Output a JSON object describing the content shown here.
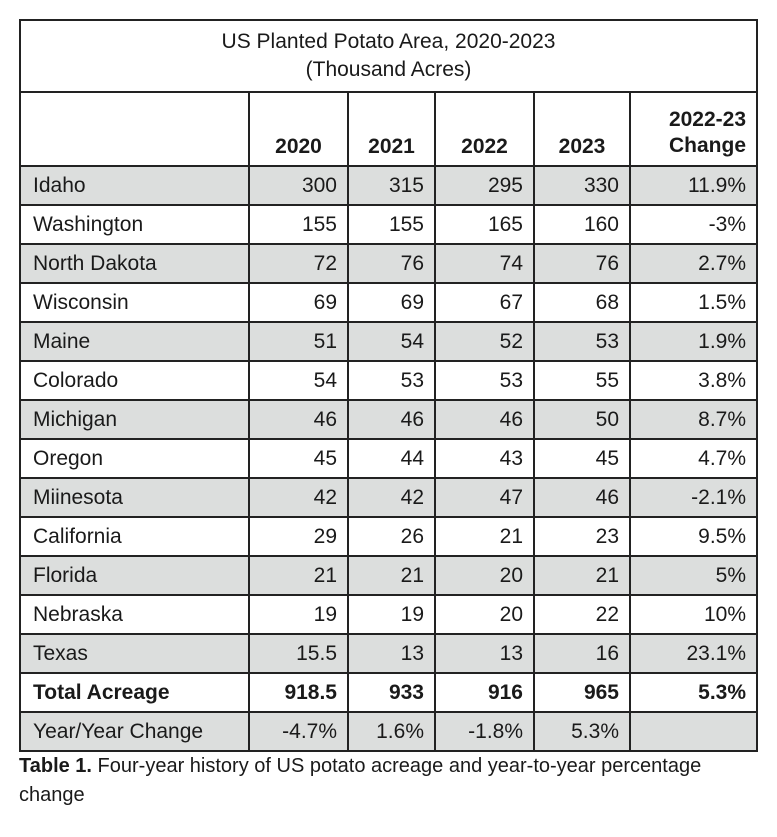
{
  "table": {
    "title_line1": "US Planted Potato Area, 2020-2023",
    "title_line2": "(Thousand Acres)",
    "headers": [
      "",
      "2020",
      "2021",
      "2022",
      "2023",
      "2022-23",
      "Change"
    ],
    "rows": [
      {
        "state": "Idaho",
        "v2020": "300",
        "v2021": "315",
        "v2022": "295",
        "v2023": "330",
        "change": "11.9%"
      },
      {
        "state": "Washington",
        "v2020": "155",
        "v2021": "155",
        "v2022": "165",
        "v2023": "160",
        "change": "-3%"
      },
      {
        "state": "North Dakota",
        "v2020": "72",
        "v2021": "76",
        "v2022": "74",
        "v2023": "76",
        "change": "2.7%"
      },
      {
        "state": "Wisconsin",
        "v2020": "69",
        "v2021": "69",
        "v2022": "67",
        "v2023": "68",
        "change": "1.5%"
      },
      {
        "state": "Maine",
        "v2020": "51",
        "v2021": "54",
        "v2022": "52",
        "v2023": "53",
        "change": "1.9%"
      },
      {
        "state": "Colorado",
        "v2020": "54",
        "v2021": "53",
        "v2022": "53",
        "v2023": "55",
        "change": "3.8%"
      },
      {
        "state": "Michigan",
        "v2020": "46",
        "v2021": "46",
        "v2022": "46",
        "v2023": "50",
        "change": "8.7%"
      },
      {
        "state": "Oregon",
        "v2020": "45",
        "v2021": "44",
        "v2022": "43",
        "v2023": "45",
        "change": "4.7%"
      },
      {
        "state": "Miinesota",
        "v2020": "42",
        "v2021": "42",
        "v2022": "47",
        "v2023": "46",
        "change": "-2.1%"
      },
      {
        "state": "California",
        "v2020": "29",
        "v2021": "26",
        "v2022": "21",
        "v2023": "23",
        "change": "9.5%"
      },
      {
        "state": "Florida",
        "v2020": "21",
        "v2021": "21",
        "v2022": "20",
        "v2023": "21",
        "change": "5%"
      },
      {
        "state": "Nebraska",
        "v2020": "19",
        "v2021": "19",
        "v2022": "20",
        "v2023": "22",
        "change": "10%"
      },
      {
        "state": "Texas",
        "v2020": "15.5",
        "v2021": "13",
        "v2022": "13",
        "v2023": "16",
        "change": "23.1%"
      }
    ],
    "total": {
      "state": "Total Acreage",
      "v2020": "918.5",
      "v2021": "933",
      "v2022": "916",
      "v2023": "965",
      "change": "5.3%"
    },
    "yoy": {
      "state": "Year/Year Change",
      "v2020": "-4.7%",
      "v2021": "1.6%",
      "v2022": "-1.8%",
      "v2023": "5.3%",
      "change": ""
    }
  },
  "caption": {
    "label": "Table 1.",
    "text": " Four-year history of US potato acreage and year-to-year percentage change"
  }
}
